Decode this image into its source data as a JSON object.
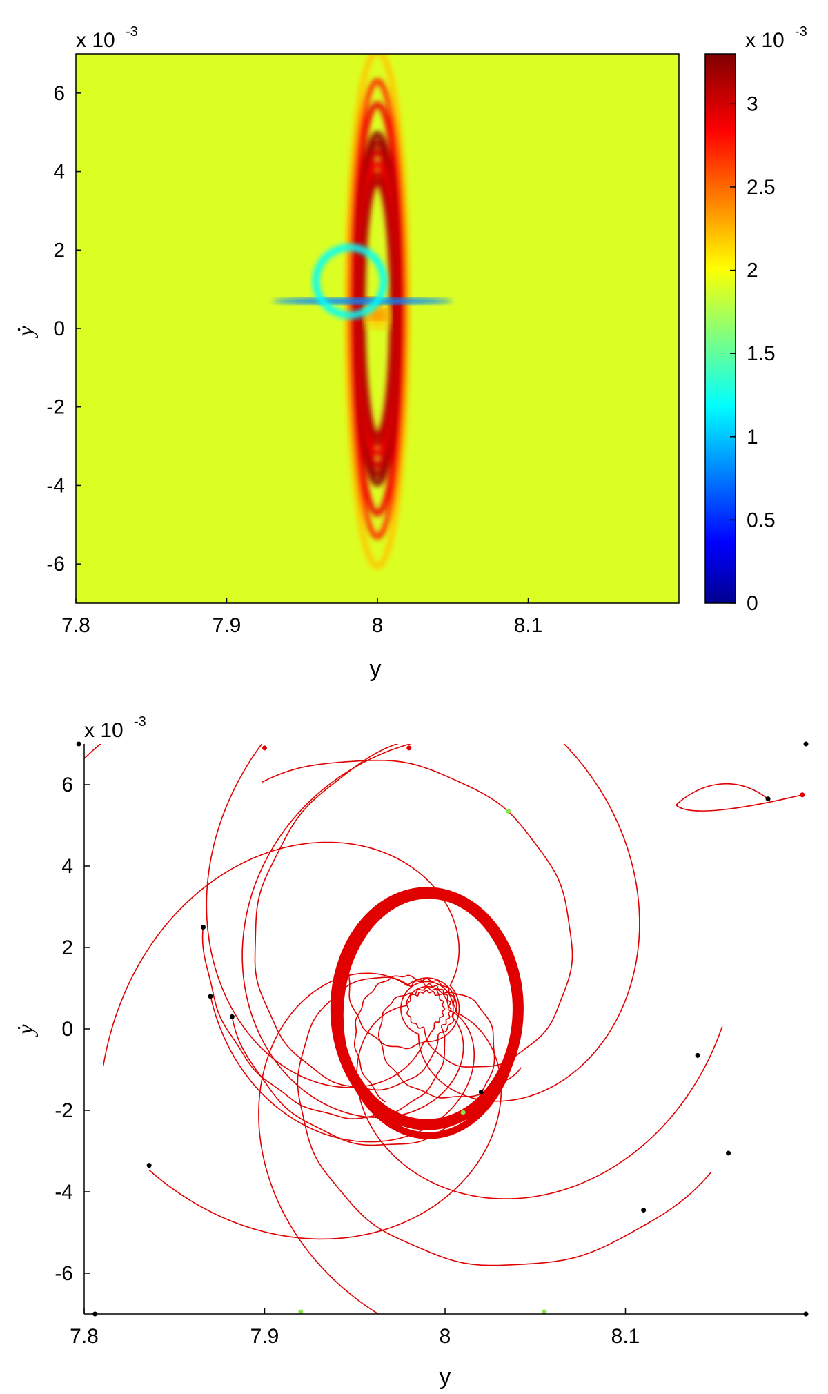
{
  "chart_data": [
    {
      "type": "heatmap",
      "title": "",
      "xlabel": "y",
      "ylabel": "ẏ",
      "xlim": [
        7.8,
        8.2
      ],
      "ylim": [
        -7,
        7
      ],
      "x_ticks": [
        "7.8",
        "7.9",
        "8",
        "8.1"
      ],
      "y_ticks": [
        "-6",
        "-4",
        "-2",
        "0",
        "2",
        "4",
        "6"
      ],
      "y_exponent_label": "x 10",
      "y_exponent_power": "-3",
      "colorbar": {
        "ticks": [
          "0",
          "0.5",
          "1",
          "1.5",
          "2",
          "2.5",
          "3"
        ],
        "range": [
          0,
          3.3
        ],
        "exponent_label": "x 10",
        "exponent_power": "-3",
        "colormap": [
          "#00008f",
          "#0000ff",
          "#00ffff",
          "#ffff00",
          "#ff0000",
          "#800000"
        ]
      },
      "features": {
        "center": [
          8.0,
          0.5
        ],
        "rings": [
          {
            "r": 0.0098,
            "v": 3.1
          },
          {
            "r": 0.0104,
            "v": 3.05
          },
          {
            "r": 0.0112,
            "v": 2.9
          },
          {
            "r": 0.0121,
            "v": 3.0
          },
          {
            "r": 0.0128,
            "v": 3.15
          },
          {
            "r": 0.0135,
            "v": 3.25
          },
          {
            "r": 0.0158,
            "v": 2.9
          },
          {
            "r": 0.0176,
            "v": 2.7
          },
          {
            "r": 0.0199,
            "v": 2.2
          }
        ],
        "low_band": {
          "x": [
            7.93,
            8.05
          ],
          "y": 0.7,
          "v": 0.8
        }
      }
    },
    {
      "type": "line",
      "title": "",
      "xlabel": "y",
      "ylabel": "ẏ",
      "xlim": [
        7.8,
        8.2
      ],
      "ylim": [
        -7,
        7
      ],
      "x_ticks": [
        "7.8",
        "7.9",
        "8",
        "8.1"
      ],
      "y_ticks": [
        "-6",
        "-4",
        "-2",
        "0",
        "2",
        "4",
        "6"
      ],
      "y_exponent_label": "x 10",
      "y_exponent_power": "-3",
      "series_color": "#e00000",
      "attractor": {
        "center_x": 7.99,
        "center_y": 0.5,
        "rx": 0.0505,
        "ry": 2.85,
        "y_bottom_extra": -0.2
      },
      "trajectories": [
        {
          "start": [
            7.9,
            6.9
          ],
          "end": [
            7.92,
            -6.95
          ],
          "r": 0.0178
        },
        {
          "start": [
            7.98,
            6.9
          ],
          "end": [
            8.055,
            -6.95
          ],
          "r": 0.0155
        },
        {
          "start": [
            8.05,
            6.9
          ],
          "end": [
            8.2,
            7.0
          ],
          "r": 0.0145
        },
        {
          "start": [
            7.866,
            2.5
          ],
          "end": [
            8.02,
            -1.55
          ],
          "r": 0.0128
        },
        {
          "start": [
            7.87,
            0.8
          ],
          "end": [
            8.11,
            -4.45
          ],
          "r": 0.0118
        },
        {
          "start": [
            7.882,
            0.3
          ],
          "end": [
            8.14,
            -0.65
          ],
          "r": 0.0108
        },
        {
          "start": [
            7.836,
            -3.35
          ],
          "end": [
            8.157,
            -3.05
          ],
          "r": 0.0165
        },
        {
          "start": [
            7.98,
            3.25
          ],
          "end": [
            8.01,
            -2.05
          ],
          "r": 0.0092
        }
      ],
      "black_markers": [
        [
          7.797,
          7.0
        ],
        [
          8.2,
          7.0
        ],
        [
          8.179,
          5.65
        ],
        [
          7.866,
          2.5
        ],
        [
          7.87,
          0.8
        ],
        [
          7.882,
          0.3
        ],
        [
          8.14,
          -0.65
        ],
        [
          8.02,
          -1.55
        ],
        [
          7.836,
          -3.35
        ],
        [
          8.157,
          -3.05
        ],
        [
          8.11,
          -4.45
        ],
        [
          7.806,
          -7.0
        ],
        [
          8.2,
          -7.0
        ]
      ],
      "red_markers": [
        [
          7.9,
          6.9
        ],
        [
          7.98,
          6.9
        ],
        [
          8.198,
          5.75
        ]
      ],
      "green_markers": [
        [
          8.035,
          5.35
        ],
        [
          8.01,
          -2.05
        ],
        [
          7.92,
          -6.95
        ],
        [
          8.055,
          -6.95
        ]
      ]
    }
  ]
}
